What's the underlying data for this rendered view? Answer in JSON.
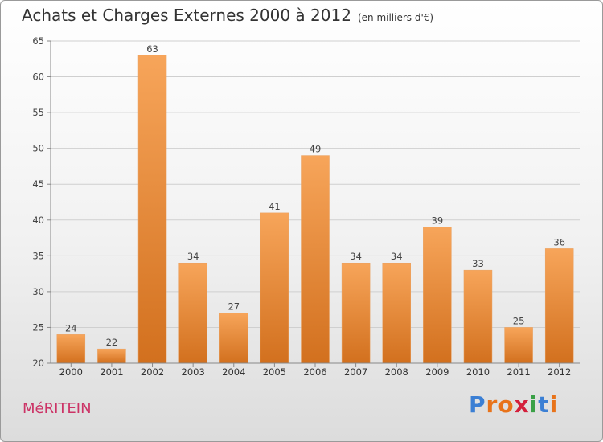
{
  "header": {
    "title": "Achats et Charges Externes 2000 à 2012",
    "subtitle": "(en milliers d'€)"
  },
  "footer": {
    "place": "MéRITEIN",
    "logo_letters": [
      "P",
      "r",
      "o",
      "x",
      "i",
      "t",
      "i"
    ],
    "logo_colors": [
      "#3b7fd4",
      "#e8731a",
      "#e8731a",
      "#d4203c",
      "#3aa046",
      "#3b7fd4",
      "#e8731a"
    ]
  },
  "chart_data": {
    "type": "bar",
    "categories": [
      "2000",
      "2001",
      "2002",
      "2003",
      "2004",
      "2005",
      "2006",
      "2007",
      "2008",
      "2009",
      "2010",
      "2011",
      "2012"
    ],
    "values": [
      24,
      22,
      63,
      34,
      27,
      41,
      49,
      34,
      34,
      39,
      33,
      25,
      36
    ],
    "ylim": [
      20,
      65
    ],
    "yticks": [
      20,
      25,
      30,
      35,
      40,
      45,
      50,
      55,
      60,
      65
    ],
    "grid": true,
    "bar_color": "#f0923a"
  }
}
